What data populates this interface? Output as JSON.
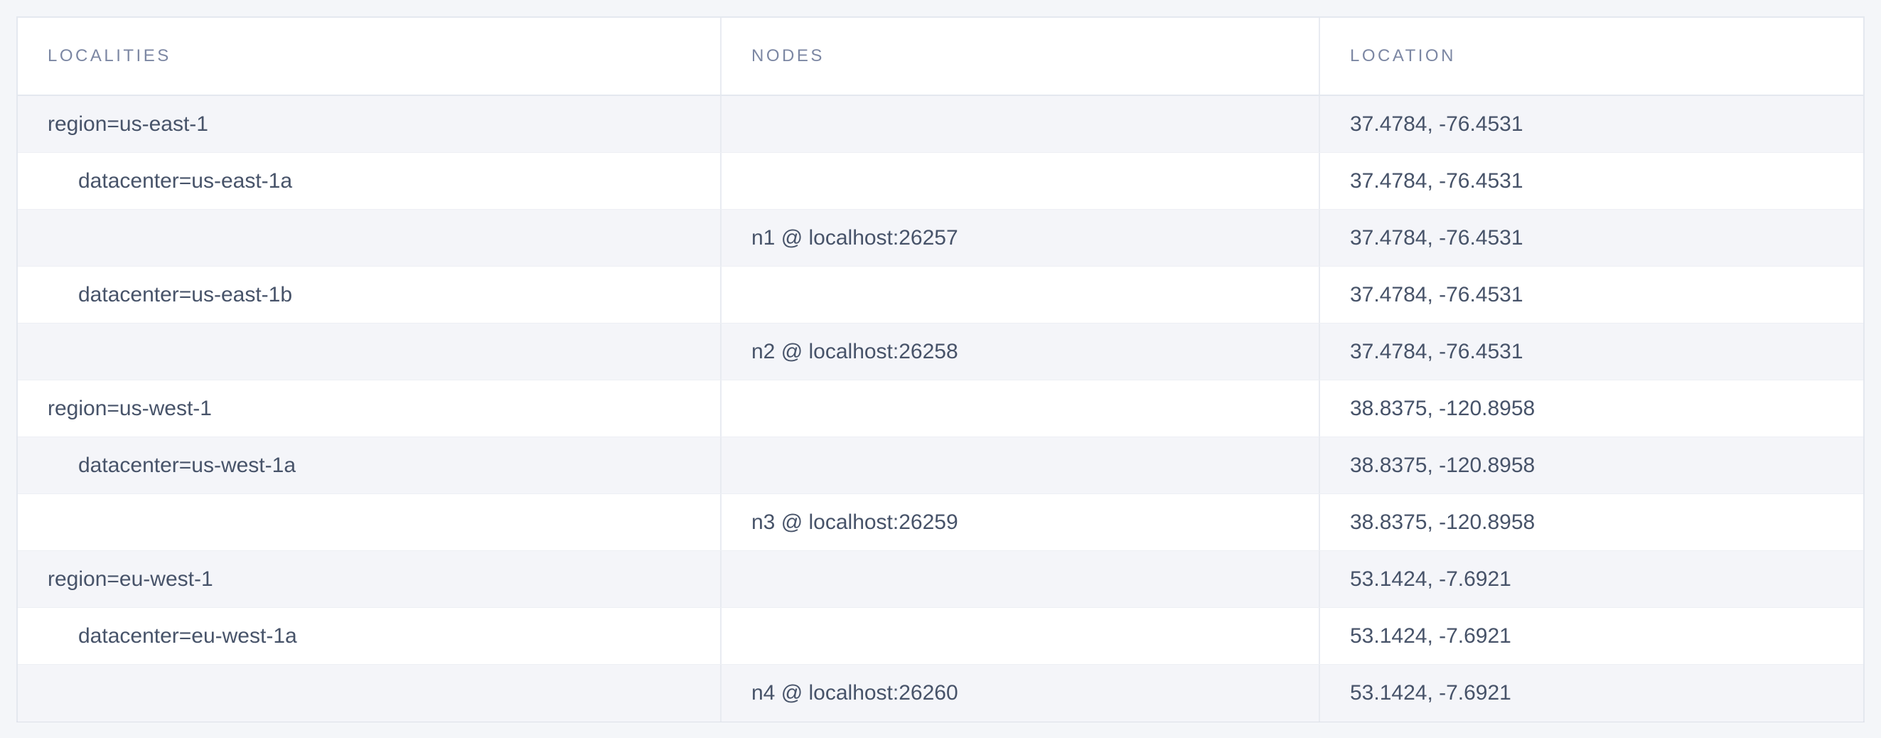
{
  "page": {
    "title": "Localities",
    "background_color": "#f4f6f9",
    "stripe_color": "#f4f5f9",
    "border_color": "#e4e8ef",
    "header_text_color": "#7c87a3",
    "cell_text_color": "#475369",
    "location_primary_color": "#36435d",
    "location_muted_color": "#9ba3b1"
  },
  "table": {
    "columns": [
      {
        "key": "localities",
        "label": "LOCALITIES"
      },
      {
        "key": "nodes",
        "label": "NODES"
      },
      {
        "key": "location",
        "label": "LOCATION"
      }
    ],
    "rows": [
      {
        "locality": "region=us-east-1",
        "indent": 0,
        "node": "",
        "location": "37.4784, -76.4531",
        "location_emphasis": true
      },
      {
        "locality": "datacenter=us-east-1a",
        "indent": 1,
        "node": "",
        "location": "37.4784, -76.4531",
        "location_emphasis": false
      },
      {
        "locality": "",
        "indent": 0,
        "node": "n1 @ localhost:26257",
        "location": "37.4784, -76.4531",
        "location_emphasis": false
      },
      {
        "locality": "datacenter=us-east-1b",
        "indent": 1,
        "node": "",
        "location": "37.4784, -76.4531",
        "location_emphasis": false
      },
      {
        "locality": "",
        "indent": 0,
        "node": "n2 @ localhost:26258",
        "location": "37.4784, -76.4531",
        "location_emphasis": false
      },
      {
        "locality": "region=us-west-1",
        "indent": 0,
        "node": "",
        "location": "38.8375, -120.8958",
        "location_emphasis": true
      },
      {
        "locality": "datacenter=us-west-1a",
        "indent": 1,
        "node": "",
        "location": "38.8375, -120.8958",
        "location_emphasis": false
      },
      {
        "locality": "",
        "indent": 0,
        "node": "n3 @ localhost:26259",
        "location": "38.8375, -120.8958",
        "location_emphasis": false
      },
      {
        "locality": "region=eu-west-1",
        "indent": 0,
        "node": "",
        "location": "53.1424, -7.6921",
        "location_emphasis": true
      },
      {
        "locality": "datacenter=eu-west-1a",
        "indent": 1,
        "node": "",
        "location": "53.1424, -7.6921",
        "location_emphasis": false
      },
      {
        "locality": "",
        "indent": 0,
        "node": "n4 @ localhost:26260",
        "location": "53.1424, -7.6921",
        "location_emphasis": false
      }
    ]
  }
}
